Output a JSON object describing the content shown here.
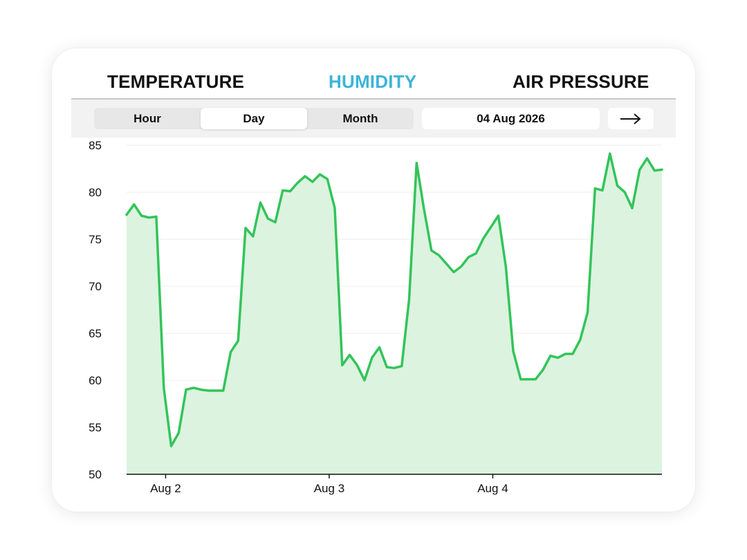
{
  "tabs": {
    "temperature": "TEMPERATURE",
    "humidity": "HUMIDITY",
    "air_pressure": "AIR PRESSURE",
    "active": "humidity"
  },
  "controls": {
    "range_options": [
      "Hour",
      "Day",
      "Month"
    ],
    "selected_range": "Day",
    "date": "04 Aug 2026",
    "next_icon": "arrow-right-icon"
  },
  "colors": {
    "active_tab": "#3cb4d8",
    "line": "#33c45a",
    "fill": "#dcf3df"
  },
  "chart_data": {
    "type": "area",
    "title": "",
    "xlabel": "",
    "ylabel": "",
    "ylim": [
      50,
      85
    ],
    "yticks": [
      50,
      55,
      60,
      65,
      70,
      75,
      80,
      85
    ],
    "xticks": [
      {
        "label": "Aug 2",
        "index": 5.25
      },
      {
        "label": "Aug 3",
        "index": 27.25
      },
      {
        "label": "Aug 4",
        "index": 49.25
      }
    ],
    "grid": true,
    "legend": "none",
    "series": [
      {
        "values": [
          77.6,
          78.7,
          77.5,
          77.3,
          77.4,
          59.2,
          53.0,
          54.4,
          59.0,
          59.2,
          59.0,
          58.9,
          58.9,
          58.9,
          63.0,
          64.2,
          76.2,
          75.3,
          78.9,
          77.2,
          76.8,
          80.2,
          80.1,
          81.0,
          81.7,
          81.1,
          81.9,
          81.4,
          78.3,
          61.6,
          62.7,
          61.6,
          60.0,
          62.4,
          63.5,
          61.4,
          61.3,
          61.5,
          68.6,
          83.1,
          78.2,
          73.8,
          73.3,
          72.4,
          71.5,
          72.1,
          73.1,
          73.5,
          75.1,
          76.3,
          77.5,
          72.1,
          63.1,
          60.1,
          60.1,
          60.1,
          61.1,
          62.6,
          62.4,
          62.8,
          62.8,
          64.3,
          67.2,
          80.4,
          80.2,
          84.1,
          80.7,
          80.0,
          78.3,
          82.4,
          83.6,
          82.3,
          82.4
        ]
      }
    ]
  }
}
